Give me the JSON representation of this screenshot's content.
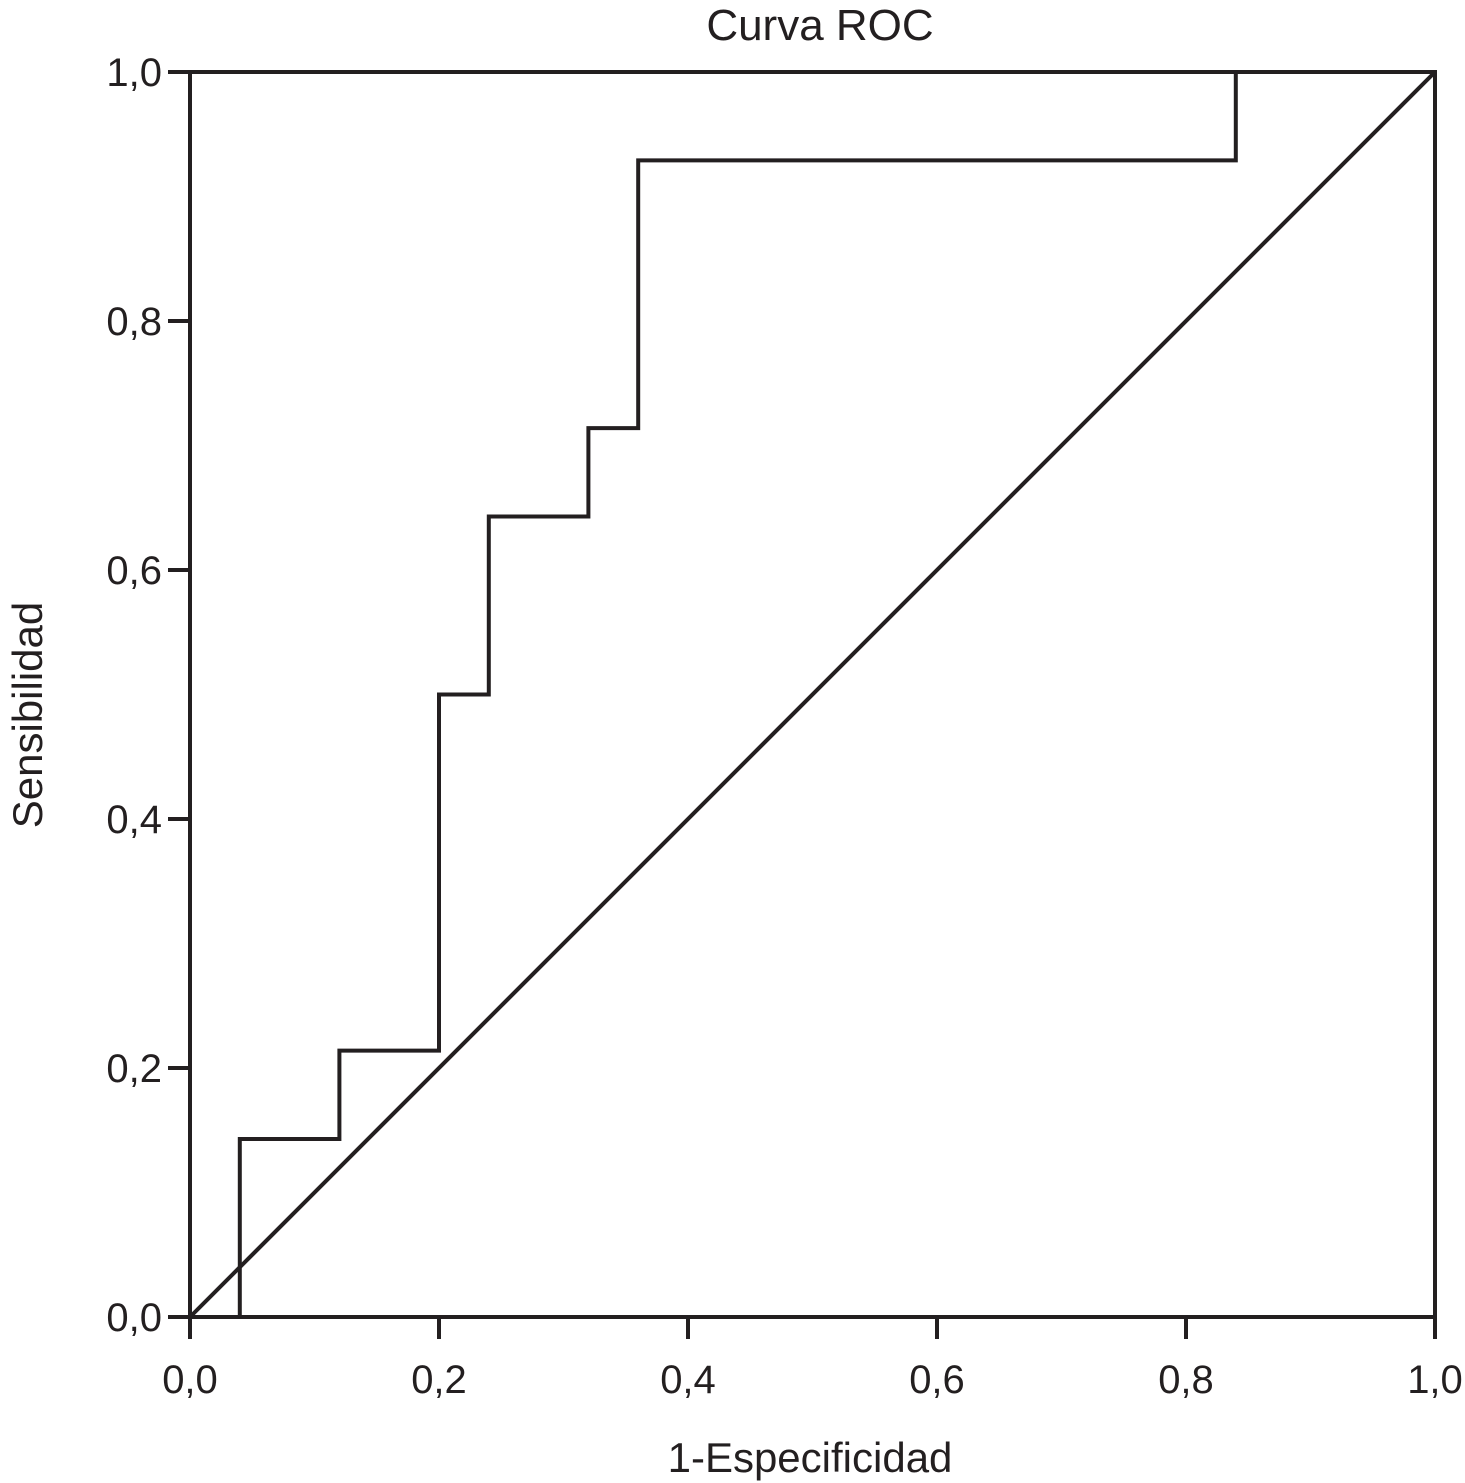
{
  "chart_data": {
    "type": "line",
    "title": "Curva ROC",
    "xlabel": "1-Especificidad",
    "ylabel": "Sensibilidad",
    "xlim": [
      0,
      1
    ],
    "ylim": [
      0,
      1
    ],
    "x_ticks": [
      0,
      0.2,
      0.4,
      0.6,
      0.8,
      1.0
    ],
    "x_tick_labels": [
      "0,0",
      "0,2",
      "0,4",
      "0,6",
      "0,8",
      "1,0"
    ],
    "y_ticks": [
      0,
      0.2,
      0.4,
      0.6,
      0.8,
      1.0
    ],
    "y_tick_labels": [
      "0,0",
      "0,2",
      "0,4",
      "0,6",
      "0,8",
      "1,0"
    ],
    "grid": false,
    "line_color": "#231f20",
    "series": [
      {
        "kind": "step",
        "x": [
          0.04,
          0.04,
          0.12,
          0.12,
          0.2,
          0.2,
          0.24,
          0.24,
          0.32,
          0.32,
          0.36,
          0.36,
          0.84,
          0.84,
          1.0
        ],
        "y": [
          0.0,
          0.143,
          0.143,
          0.214,
          0.214,
          0.5,
          0.5,
          0.643,
          0.643,
          0.714,
          0.714,
          0.929,
          0.929,
          1.0,
          1.0
        ]
      },
      {
        "kind": "reference",
        "x": [
          0,
          1
        ],
        "y": [
          0,
          1
        ]
      }
    ]
  }
}
